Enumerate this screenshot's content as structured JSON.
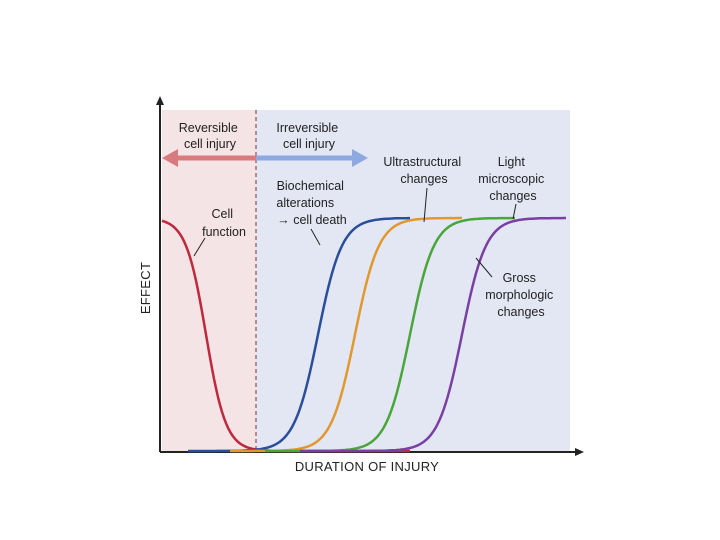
{
  "colors": {
    "reversible_region": "#f5e4e6",
    "irreversible_region": "#e3e7f4",
    "reversible_arrow": "#d97a7e",
    "irreversible_arrow": "#8ea9e0",
    "axis": "#222222",
    "divider": "#8a2a3a"
  },
  "regions": {
    "reversible": {
      "line1": "Reversible",
      "line2": "cell injury"
    },
    "irreversible": {
      "line1": "Irreversible",
      "line2": "cell injury"
    }
  },
  "axes": {
    "x_label": "DURATION OF INJURY",
    "y_label": "EFFECT"
  },
  "curves": [
    {
      "id": "cell-function",
      "color": "#c0283c",
      "lines": [
        "Cell",
        "function"
      ]
    },
    {
      "id": "biochemical",
      "color": "#2a4f9a",
      "lines": [
        "Biochemical",
        "alterations",
        "→ cell death"
      ]
    },
    {
      "id": "ultrastructural",
      "color": "#e0982f",
      "lines": [
        "Ultrastructural",
        "changes"
      ]
    },
    {
      "id": "light-microscopic",
      "color": "#4aa53a",
      "lines": [
        "Light",
        "microscopic",
        "changes"
      ]
    },
    {
      "id": "gross",
      "color": "#7a3fa3",
      "lines": [
        "Gross",
        "morphologic",
        "changes"
      ]
    }
  ]
}
